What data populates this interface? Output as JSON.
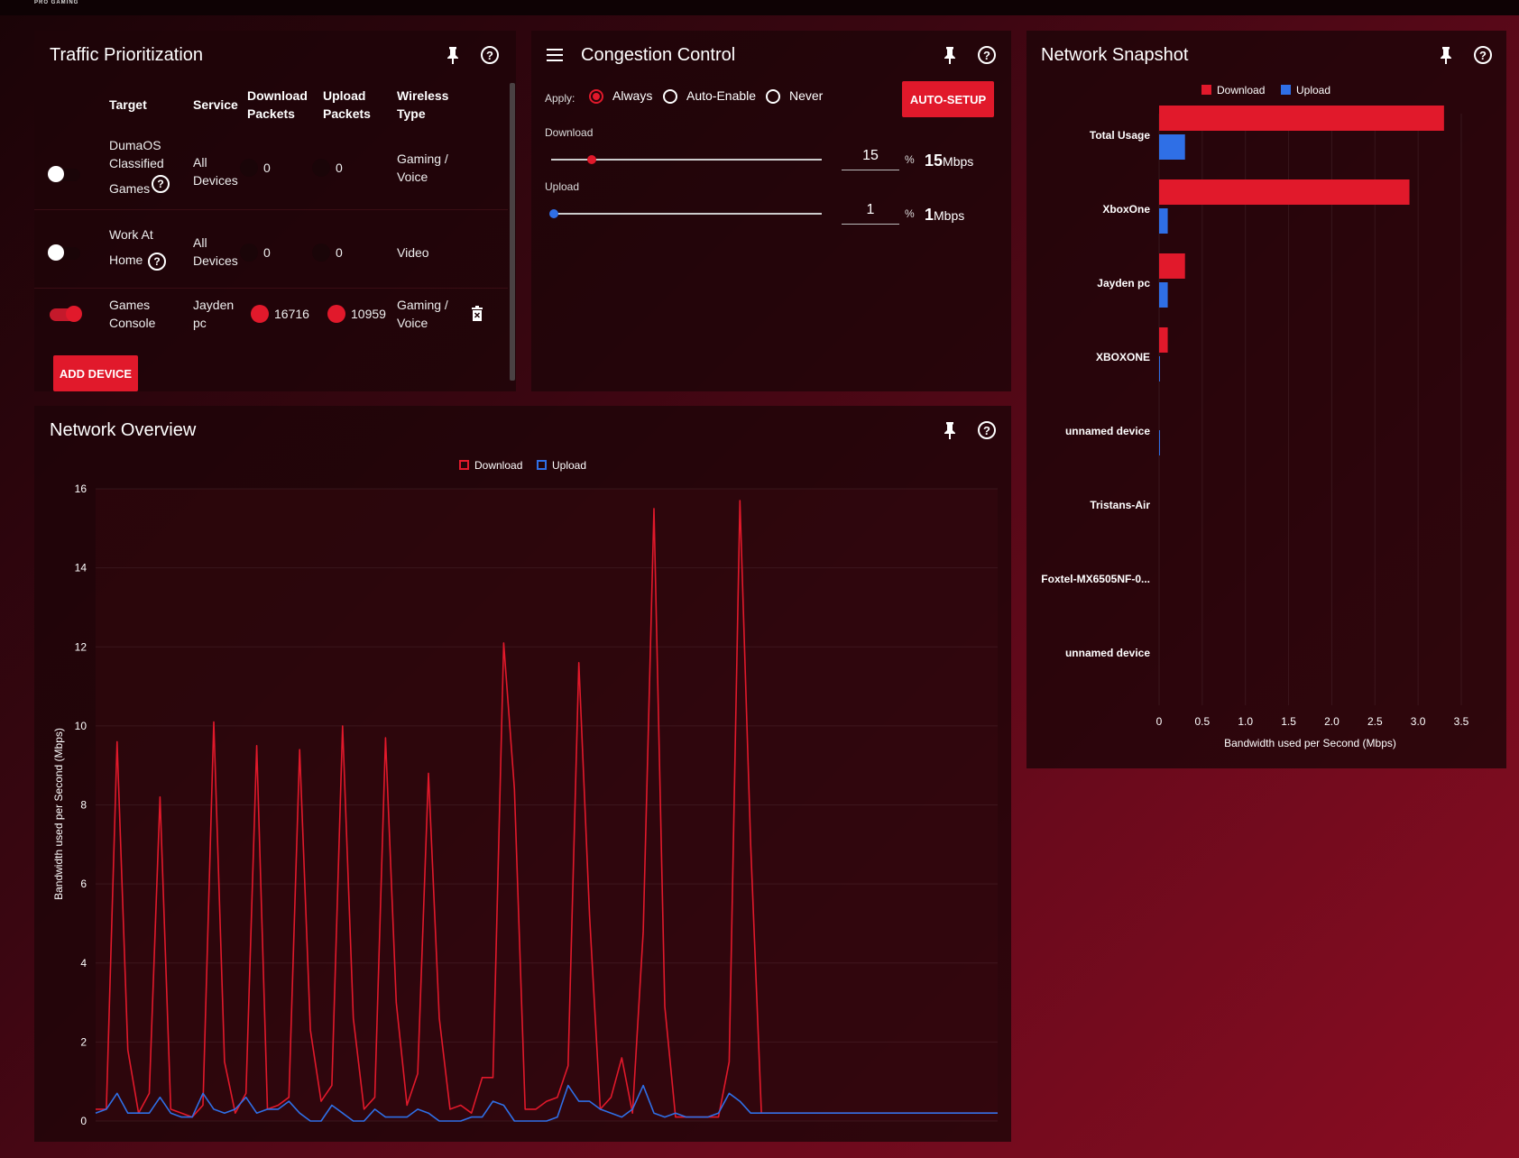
{
  "brand": "PRO GAMING",
  "traffic": {
    "title": "Traffic Prioritization",
    "columns": [
      "Target",
      "Service",
      "Download Packets",
      "Upload Packets",
      "Wireless Type"
    ],
    "col_lines": {
      "download": [
        "Download",
        "Packets"
      ],
      "upload": [
        "Upload",
        "Packets"
      ],
      "wireless": [
        "Wireless",
        "Type"
      ]
    },
    "rows": [
      {
        "enabled": false,
        "target": [
          "DumaOS",
          "Classified",
          "Games"
        ],
        "service": [
          "All",
          "Devices"
        ],
        "download": "0",
        "upload": "0",
        "wireless": [
          "Gaming /",
          "Voice"
        ]
      },
      {
        "enabled": false,
        "target": [
          "Work At",
          "Home"
        ],
        "service": [
          "All",
          "Devices"
        ],
        "download": "0",
        "upload": "0",
        "wireless": [
          "Video"
        ]
      },
      {
        "enabled": true,
        "target": [
          "Games",
          "Console"
        ],
        "service": [
          "Jayden",
          "pc"
        ],
        "download": "16716",
        "upload": "10959",
        "wireless": [
          "Gaming /",
          "Voice"
        ]
      }
    ],
    "add_button": "ADD DEVICE"
  },
  "congestion": {
    "title": "Congestion Control",
    "apply_label": "Apply:",
    "options": [
      "Always",
      "Auto-Enable",
      "Never"
    ],
    "selected": "Always",
    "auto_setup": "AUTO-SETUP",
    "download": {
      "label": "Download",
      "percent": "15",
      "pct_sign": "%",
      "value": "15",
      "unit": "Mbps",
      "fraction": 0.15
    },
    "upload": {
      "label": "Upload",
      "percent": "1",
      "pct_sign": "%",
      "value": "1",
      "unit": "Mbps",
      "fraction": 0.01
    }
  },
  "snapshot": {
    "title": "Network Snapshot",
    "legend": [
      "Download",
      "Upload"
    ],
    "xlabel": "Bandwidth used per Second (Mbps)"
  },
  "overview": {
    "title": "Network Overview",
    "legend": [
      "Download",
      "Upload"
    ],
    "ylabel": "Bandwidth used per Second (Mbps)"
  },
  "colors": {
    "download": "#e1192b",
    "upload": "#2f6fe6",
    "accent": "#e1192b"
  },
  "icons": [
    "pin-icon",
    "help-icon",
    "menu-icon",
    "trash-icon"
  ],
  "chart_data": [
    {
      "type": "bar",
      "orientation": "horizontal",
      "title": "Network Snapshot",
      "categories": [
        "Total Usage",
        "XboxOne",
        "Jayden pc",
        "XBOXONE",
        "unnamed device",
        "Tristans-Air",
        "Foxtel-MX6505NF-0...",
        "unnamed device"
      ],
      "series": [
        {
          "name": "Download",
          "values": [
            3.3,
            2.9,
            0.3,
            0.1,
            0,
            0,
            0,
            0
          ]
        },
        {
          "name": "Upload",
          "values": [
            0.3,
            0.1,
            0.1,
            0.01,
            0.01,
            0,
            0,
            0
          ]
        }
      ],
      "xlabel": "Bandwidth used per Second (Mbps)",
      "xticks": [
        "0",
        "0.5",
        "1.0",
        "1.5",
        "2.0",
        "2.5",
        "3.0",
        "3.5"
      ],
      "xlim": [
        0,
        3.5
      ],
      "legend_position": "top",
      "grid": true
    },
    {
      "type": "line",
      "title": "Network Overview",
      "ylabel": "Bandwidth used per Second (Mbps)",
      "ylim": [
        0,
        16
      ],
      "yticks": [
        "0",
        "2",
        "4",
        "6",
        "8",
        "10",
        "12",
        "14",
        "16"
      ],
      "x_count": 85,
      "series": [
        {
          "name": "Download",
          "values": [
            0.3,
            0.3,
            9.6,
            1.8,
            0.2,
            0.7,
            8.2,
            0.3,
            0.2,
            0.1,
            0.4,
            10.1,
            1.5,
            0.2,
            0.7,
            9.5,
            0.3,
            0.4,
            0.6,
            9.4,
            2.3,
            0.5,
            0.9,
            10.0,
            2.6,
            0.3,
            0.6,
            9.7,
            3.0,
            0.4,
            1.2,
            8.8,
            2.6,
            0.3,
            0.4,
            0.2,
            1.1,
            1.1,
            12.1,
            8.4,
            0.3,
            0.3,
            0.5,
            0.6,
            1.4,
            11.6,
            5.2,
            0.3,
            0.6,
            1.6,
            0.2,
            4.8,
            15.5,
            2.9,
            0.1,
            0.1,
            0.1,
            0.1,
            0.1,
            1.5,
            15.7,
            7.0,
            0.2,
            0.2,
            0.2,
            0.2,
            0.2,
            0.2,
            0.2,
            0.2,
            0.2,
            0.2,
            0.2,
            0.2,
            0.2,
            0.2,
            0.2,
            0.2,
            0.2,
            0.2,
            0.2,
            0.2,
            0.2,
            0.2,
            0.2
          ]
        },
        {
          "name": "Upload",
          "values": [
            0.2,
            0.3,
            0.7,
            0.2,
            0.2,
            0.2,
            0.6,
            0.2,
            0.1,
            0.1,
            0.7,
            0.3,
            0.2,
            0.3,
            0.6,
            0.2,
            0.3,
            0.3,
            0.5,
            0.2,
            0.0,
            0.0,
            0.4,
            0.2,
            0.0,
            0.0,
            0.3,
            0.1,
            0.1,
            0.1,
            0.3,
            0.2,
            0.0,
            0.0,
            0.0,
            0.1,
            0.1,
            0.5,
            0.4,
            0.0,
            0.0,
            0.0,
            0.0,
            0.1,
            0.9,
            0.5,
            0.5,
            0.3,
            0.2,
            0.1,
            0.3,
            0.9,
            0.2,
            0.1,
            0.2,
            0.1,
            0.1,
            0.1,
            0.2,
            0.7,
            0.5,
            0.2,
            0.2,
            0.2,
            0.2,
            0.2,
            0.2,
            0.2,
            0.2,
            0.2,
            0.2,
            0.2,
            0.2,
            0.2,
            0.2,
            0.2,
            0.2,
            0.2,
            0.2,
            0.2,
            0.2,
            0.2,
            0.2,
            0.2,
            0.2
          ]
        }
      ],
      "legend_position": "top",
      "grid": true
    }
  ]
}
